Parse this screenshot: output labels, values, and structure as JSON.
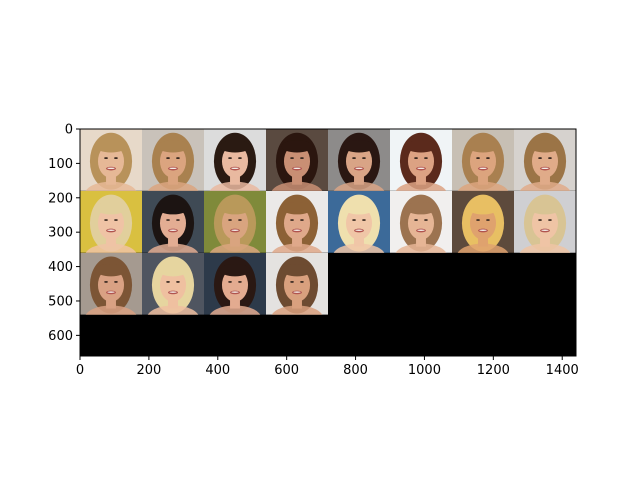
{
  "chart_data": {
    "type": "image-grid",
    "title": "",
    "xlabel": "",
    "ylabel": "",
    "xlim": [
      0,
      1440
    ],
    "ylim": [
      660,
      0
    ],
    "xticks": [
      0,
      200,
      400,
      600,
      800,
      1000,
      1200,
      1400
    ],
    "yticks": [
      0,
      100,
      200,
      300,
      400,
      500,
      600
    ],
    "grid_rows": 3,
    "grid_cols": 8,
    "tile_size": 180,
    "filled_tiles": 20,
    "empty_fill": "#000000",
    "tiles": [
      {
        "row": 0,
        "col": 0,
        "bg": "#e7d9c9",
        "hair": "#b8925a",
        "skin": "#e6b896"
      },
      {
        "row": 0,
        "col": 1,
        "bg": "#c9c2ba",
        "hair": "#a9814f",
        "skin": "#dba47f"
      },
      {
        "row": 0,
        "col": 2,
        "bg": "#dcdcdc",
        "hair": "#2a1a12",
        "skin": "#e9b9a0"
      },
      {
        "row": 0,
        "col": 3,
        "bg": "#5a4a40",
        "hair": "#2b160f",
        "skin": "#c98f74"
      },
      {
        "row": 0,
        "col": 4,
        "bg": "#8d8b8a",
        "hair": "#2a1712",
        "skin": "#d9a486"
      },
      {
        "row": 0,
        "col": 5,
        "bg": "#f0f4f6",
        "hair": "#5b2a1c",
        "skin": "#dca283"
      },
      {
        "row": 0,
        "col": 6,
        "bg": "#c7bfb4",
        "hair": "#a98050",
        "skin": "#dca47e"
      },
      {
        "row": 0,
        "col": 7,
        "bg": "#d6d2ce",
        "hair": "#9b7446",
        "skin": "#e0ab89"
      },
      {
        "row": 1,
        "col": 0,
        "bg": "#d9c040",
        "hair": "#e1cf9c",
        "skin": "#efc3a5"
      },
      {
        "row": 1,
        "col": 1,
        "bg": "#3f4a55",
        "hair": "#1c1412",
        "skin": "#e3ad93"
      },
      {
        "row": 1,
        "col": 2,
        "bg": "#7f8a3a",
        "hair": "#b9995a",
        "skin": "#d9a47f"
      },
      {
        "row": 1,
        "col": 3,
        "bg": "#ebe9e8",
        "hair": "#8c6136",
        "skin": "#dfa88a"
      },
      {
        "row": 1,
        "col": 4,
        "bg": "#3c6a99",
        "hair": "#efe0ae",
        "skin": "#f0c6a7"
      },
      {
        "row": 1,
        "col": 5,
        "bg": "#f1efee",
        "hair": "#9c7350",
        "skin": "#e6b595"
      },
      {
        "row": 1,
        "col": 6,
        "bg": "#5d4a3c",
        "hair": "#e8bf63",
        "skin": "#dfa26e"
      },
      {
        "row": 1,
        "col": 7,
        "bg": "#cfcfd2",
        "hair": "#d8c494",
        "skin": "#efc4a5"
      },
      {
        "row": 2,
        "col": 0,
        "bg": "#a59a90",
        "hair": "#7c5535",
        "skin": "#d9a183"
      },
      {
        "row": 2,
        "col": 1,
        "bg": "#4f5560",
        "hair": "#e6d59f",
        "skin": "#efc0a0"
      },
      {
        "row": 2,
        "col": 2,
        "bg": "#2d3a4a",
        "hair": "#2a1813",
        "skin": "#e3ab90"
      },
      {
        "row": 2,
        "col": 3,
        "bg": "#e4e2e0",
        "hair": "#6d4b31",
        "skin": "#d9a07e"
      }
    ]
  }
}
